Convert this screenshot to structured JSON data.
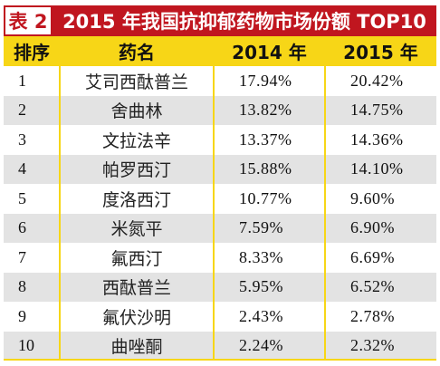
{
  "title": {
    "tag": "表 2",
    "text": "2015 年我国抗抑郁药物市场份额 TOP10"
  },
  "headers": [
    "排序",
    "药名",
    "2014 年",
    "2015 年"
  ],
  "rows": [
    {
      "rank": "1",
      "name": "艾司西酞普兰",
      "y2014": "17.94%",
      "y2015": "20.42%"
    },
    {
      "rank": "2",
      "name": "舍曲林",
      "y2014": "13.82%",
      "y2015": "14.75%"
    },
    {
      "rank": "3",
      "name": "文拉法辛",
      "y2014": "13.37%",
      "y2015": "14.36%"
    },
    {
      "rank": "4",
      "name": "帕罗西汀",
      "y2014": "15.88%",
      "y2015": "14.10%"
    },
    {
      "rank": "5",
      "name": "度洛西汀",
      "y2014": "10.77%",
      "y2015": "9.60%"
    },
    {
      "rank": "6",
      "name": "米氮平",
      "y2014": "7.59%",
      "y2015": "6.90%"
    },
    {
      "rank": "7",
      "name": "氟西汀",
      "y2014": "8.33%",
      "y2015": "6.69%"
    },
    {
      "rank": "8",
      "name": "西酞普兰",
      "y2014": "5.95%",
      "y2015": "6.52%"
    },
    {
      "rank": "9",
      "name": "氟伏沙明",
      "y2014": "2.43%",
      "y2015": "2.78%"
    },
    {
      "rank": "10",
      "name": "曲唑酮",
      "y2014": "2.24%",
      "y2015": "2.32%"
    }
  ],
  "colors": {
    "title_red": "#c0161f",
    "header_yellow": "#f7d617",
    "stripe_gray": "#e3e3e3"
  }
}
